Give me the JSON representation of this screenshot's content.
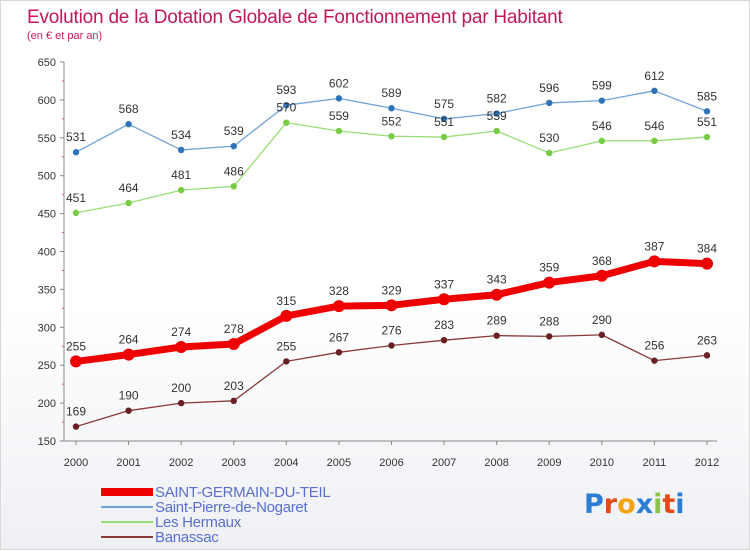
{
  "header": {
    "title": "Evolution de la Dotation Globale de Fonctionnement par Habitant",
    "subtitle": "(en € et par an)"
  },
  "logo": {
    "text": "Proxiti",
    "colors": [
      "#2a7fd4",
      "#e64a19",
      "#f4a40c",
      "#2a7fd4",
      "#8bc34a",
      "#e64a19",
      "#2a7fd4"
    ]
  },
  "chart_data": {
    "type": "line",
    "title": "Evolution de la Dotation Globale de Fonctionnement par Habitant",
    "subtitle": "(en € et par an)",
    "x": [
      "2000",
      "2001",
      "2002",
      "2003",
      "2004",
      "2005",
      "2006",
      "2007",
      "2008",
      "2009",
      "2010",
      "2011",
      "2012"
    ],
    "ylim": [
      150,
      650
    ],
    "yticks": [
      150,
      200,
      250,
      300,
      350,
      400,
      450,
      500,
      550,
      600,
      650
    ],
    "grid": false,
    "legend_position": "bottom-left",
    "series": [
      {
        "name": "SAINT-GERMAIN-DU-TEIL",
        "color": "#ee0000",
        "emphasis": true,
        "values": [
          255,
          264,
          274,
          278,
          315,
          328,
          329,
          337,
          343,
          359,
          368,
          387,
          384
        ]
      },
      {
        "name": "Saint-Pierre-de-Nogaret",
        "color": "#6fa4d8",
        "marker": "#2f74b8",
        "values": [
          531,
          568,
          534,
          539,
          593,
          602,
          589,
          575,
          582,
          596,
          599,
          612,
          585
        ]
      },
      {
        "name": "Les Hermaux",
        "color": "#99dd77",
        "marker": "#77cc44",
        "values": [
          451,
          464,
          481,
          486,
          570,
          559,
          552,
          551,
          559,
          530,
          546,
          546,
          551
        ]
      },
      {
        "name": "Banassac",
        "color": "#8a3a3a",
        "marker": "#6a1f22",
        "values": [
          169,
          190,
          200,
          203,
          255,
          267,
          276,
          283,
          289,
          288,
          290,
          256,
          263
        ]
      }
    ]
  }
}
